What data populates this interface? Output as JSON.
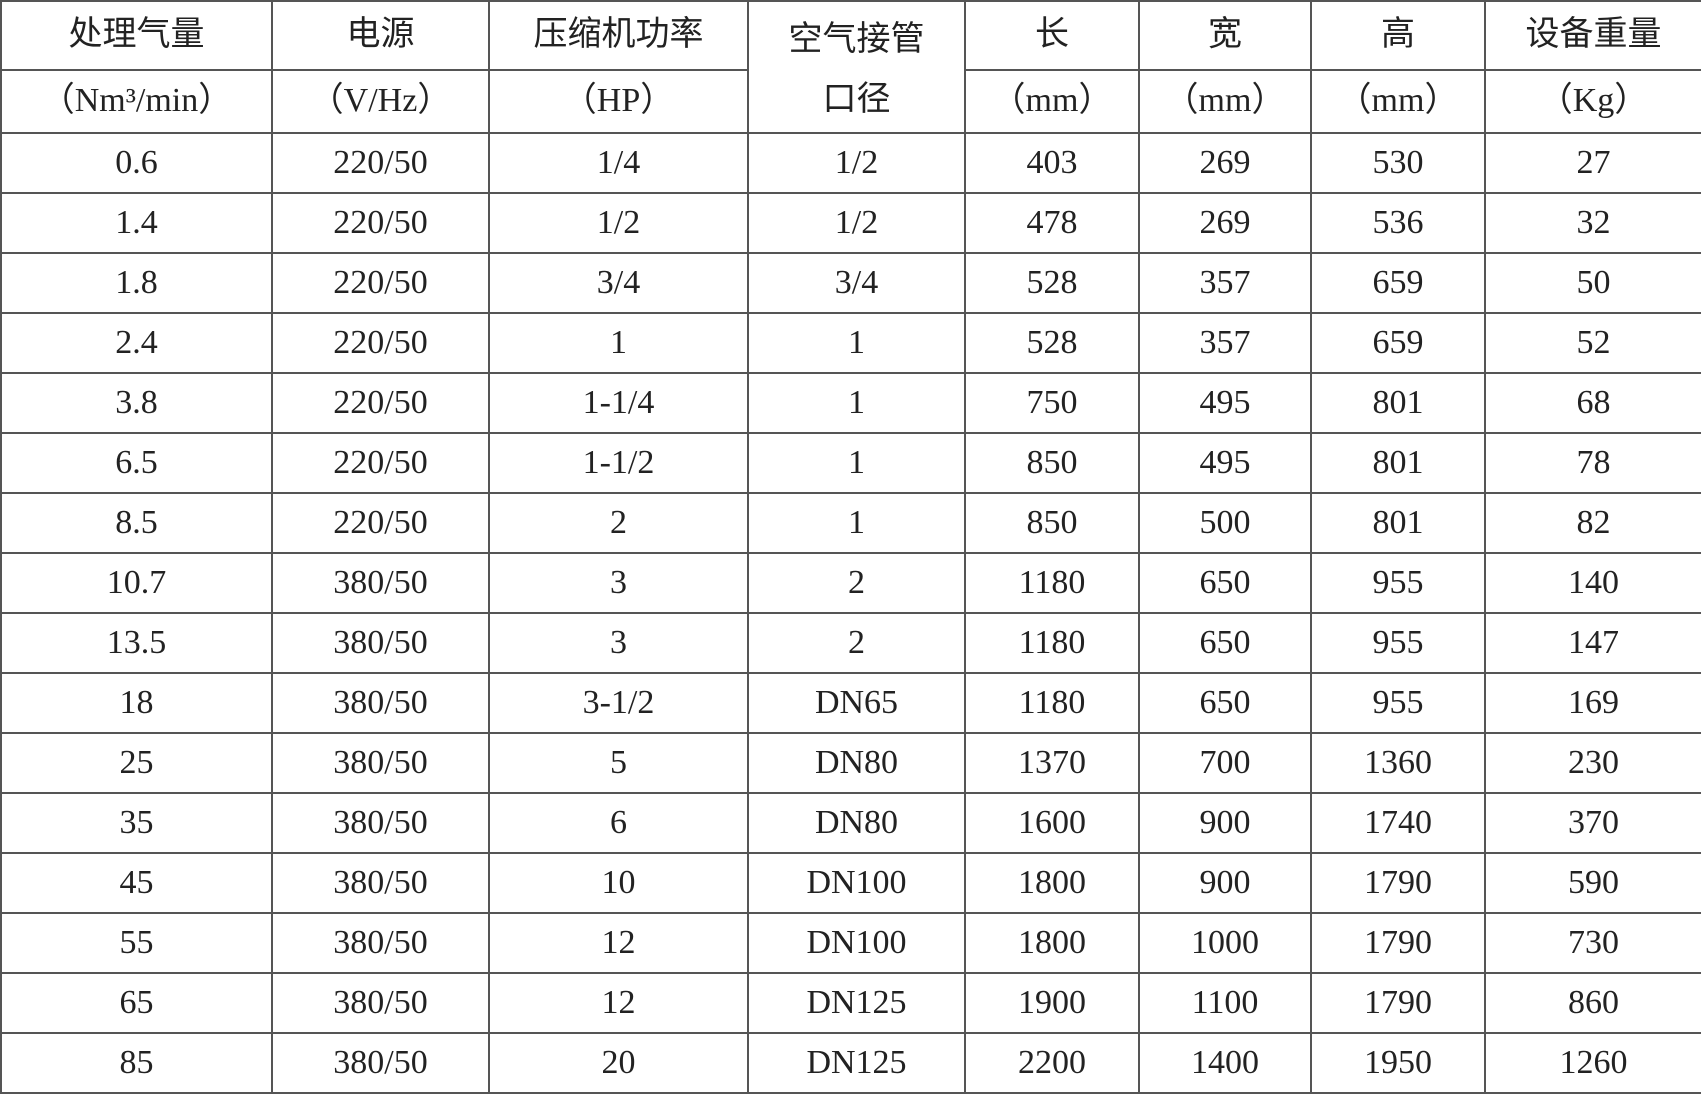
{
  "table": {
    "header": [
      [
        "处理气量",
        "（Nm³/min）"
      ],
      [
        "电源",
        "（V/Hz）"
      ],
      [
        "压缩机功率",
        "（HP）"
      ],
      [
        "空气接管",
        "口径"
      ],
      [
        "长",
        "（mm）"
      ],
      [
        "宽",
        "（mm）"
      ],
      [
        "高",
        "（mm）"
      ],
      [
        "设备重量",
        "（Kg）"
      ]
    ],
    "rows": [
      [
        "0.6",
        "220/50",
        "1/4",
        "1/2",
        "403",
        "269",
        "530",
        "27"
      ],
      [
        "1.4",
        "220/50",
        "1/2",
        "1/2",
        "478",
        "269",
        "536",
        "32"
      ],
      [
        "1.8",
        "220/50",
        "3/4",
        "3/4",
        "528",
        "357",
        "659",
        "50"
      ],
      [
        "2.4",
        "220/50",
        "1",
        "1",
        "528",
        "357",
        "659",
        "52"
      ],
      [
        "3.8",
        "220/50",
        "1-1/4",
        "1",
        "750",
        "495",
        "801",
        "68"
      ],
      [
        "6.5",
        "220/50",
        "1-1/2",
        "1",
        "850",
        "495",
        "801",
        "78"
      ],
      [
        "8.5",
        "220/50",
        "2",
        "1",
        "850",
        "500",
        "801",
        "82"
      ],
      [
        "10.7",
        "380/50",
        "3",
        "2",
        "1180",
        "650",
        "955",
        "140"
      ],
      [
        "13.5",
        "380/50",
        "3",
        "2",
        "1180",
        "650",
        "955",
        "147"
      ],
      [
        "18",
        "380/50",
        "3-1/2",
        "DN65",
        "1180",
        "650",
        "955",
        "169"
      ],
      [
        "25",
        "380/50",
        "5",
        "DN80",
        "1370",
        "700",
        "1360",
        "230"
      ],
      [
        "35",
        "380/50",
        "6",
        "DN80",
        "1600",
        "900",
        "1740",
        "370"
      ],
      [
        "45",
        "380/50",
        "10",
        "DN100",
        "1800",
        "900",
        "1790",
        "590"
      ],
      [
        "55",
        "380/50",
        "12",
        "DN100",
        "1800",
        "1000",
        "1790",
        "730"
      ],
      [
        "65",
        "380/50",
        "12",
        "DN125",
        "1900",
        "1100",
        "1790",
        "860"
      ],
      [
        "85",
        "380/50",
        "20",
        "DN125",
        "2200",
        "1400",
        "1950",
        "1260"
      ]
    ]
  }
}
